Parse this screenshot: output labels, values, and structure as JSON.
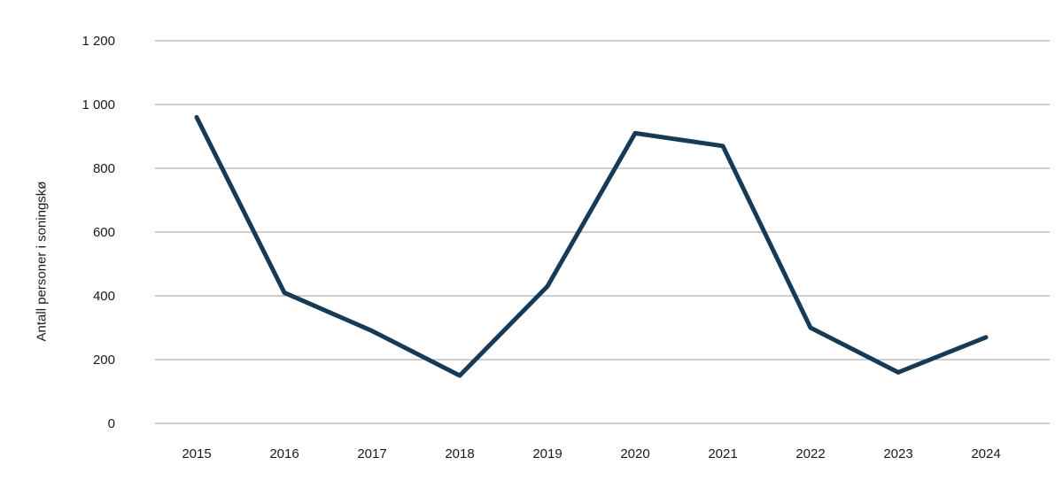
{
  "chart_data": {
    "type": "line",
    "title": "",
    "xlabel": "",
    "ylabel": "Antall personer i soningskø",
    "x": [
      2015,
      2016,
      2017,
      2018,
      2019,
      2020,
      2021,
      2022,
      2023,
      2024
    ],
    "series": [
      {
        "name": "Antall personer i soningskø",
        "values": [
          960,
          410,
          290,
          150,
          430,
          910,
          870,
          300,
          160,
          270
        ]
      }
    ],
    "ylim": [
      0,
      1200
    ],
    "ytick_step": 200,
    "ytick_labels": [
      "0",
      "200",
      "400",
      "600",
      "800",
      "1 000",
      "1 200"
    ],
    "grid": "horizontal",
    "legend_position": "none",
    "line_color": "#173a56",
    "grid_color": "#9e9e9e",
    "text_color": "#1a1a1a",
    "background": "#ffffff"
  }
}
